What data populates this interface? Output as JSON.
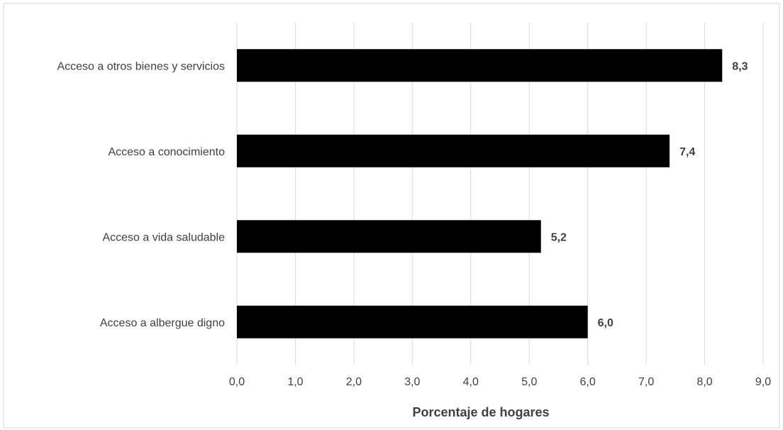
{
  "chart_data": {
    "type": "bar",
    "orientation": "horizontal",
    "categories": [
      "Acceso a otros bienes y servicios",
      "Acceso a conocimiento",
      "Acceso a vida saludable",
      "Acceso a albergue digno"
    ],
    "values": [
      8.3,
      7.4,
      5.2,
      6.0
    ],
    "value_labels": [
      "8,3",
      "7,4",
      "5,2",
      "6,0"
    ],
    "title": "",
    "xlabel": "Porcentaje de hogares",
    "ylabel": "",
    "xlim": [
      0,
      9
    ],
    "xticks": [
      0,
      1,
      2,
      3,
      4,
      5,
      6,
      7,
      8,
      9
    ],
    "xtick_labels": [
      "0,0",
      "1,0",
      "2,0",
      "3,0",
      "4,0",
      "5,0",
      "6,0",
      "7,0",
      "8,0",
      "9,0"
    ],
    "grid": true,
    "legend": "none",
    "bar_color": "#000000",
    "grid_color": "#d9d9d9",
    "text_color": "#404040"
  }
}
